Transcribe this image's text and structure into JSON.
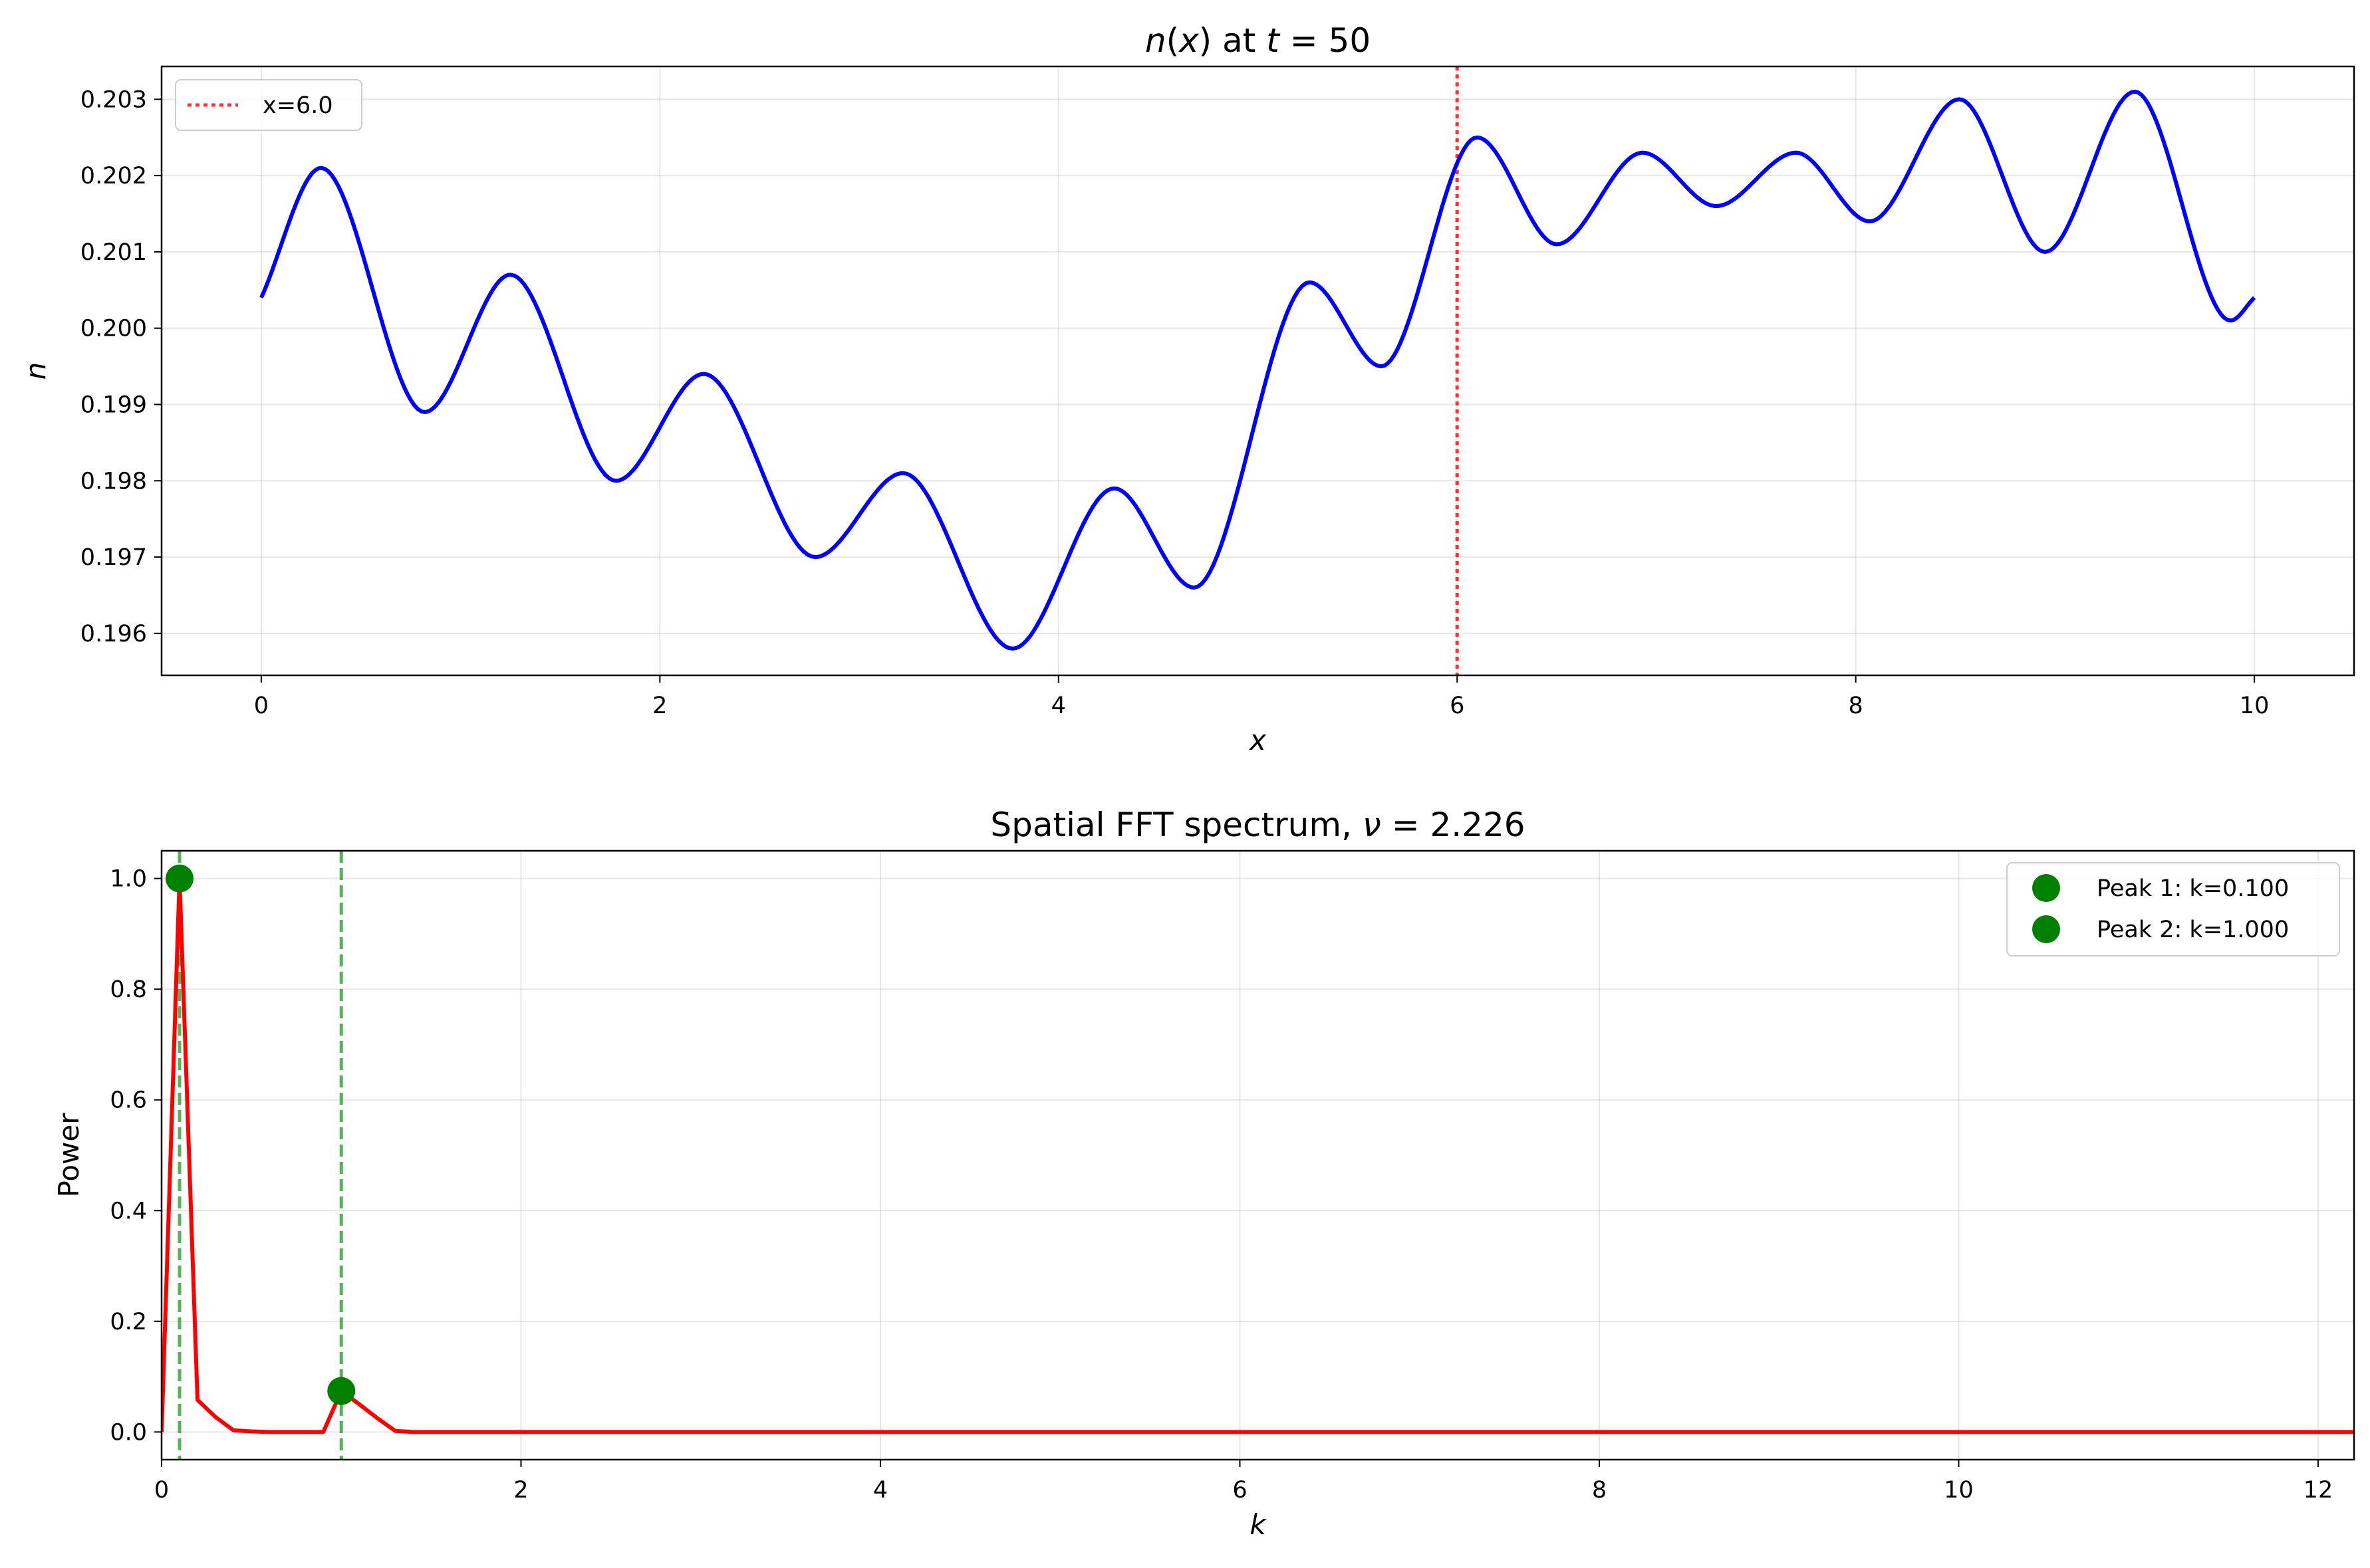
{
  "chart_data": [
    {
      "type": "line",
      "title_parts": [
        {
          "text": "n",
          "italic": true
        },
        {
          "text": "(",
          "italic": false
        },
        {
          "text": "x",
          "italic": true
        },
        {
          "text": ") at ",
          "italic": false
        },
        {
          "text": "t",
          "italic": true
        },
        {
          "text": " = 50",
          "italic": false
        }
      ],
      "xlabel": "x",
      "ylabel": "n",
      "xlim": [
        -0.5,
        10.5
      ],
      "ylim": [
        0.19545,
        0.20343
      ],
      "xticks": [
        0,
        2,
        4,
        6,
        8,
        10
      ],
      "yticks": [
        0.196,
        0.197,
        0.198,
        0.199,
        0.2,
        0.201,
        0.202,
        0.203
      ],
      "ytick_labels": [
        "0.196",
        "0.197",
        "0.198",
        "0.199",
        "0.200",
        "0.201",
        "0.202",
        "0.203"
      ],
      "grid": true,
      "legend_position": "top-left",
      "series": [
        {
          "color": "#0000ff",
          "x": [
            0.0,
            0.3,
            0.82,
            1.25,
            1.78,
            2.22,
            2.78,
            3.22,
            3.77,
            4.28,
            4.68,
            5.26,
            5.62,
            6.1,
            6.5,
            6.93,
            7.3,
            7.7,
            8.07,
            8.52,
            8.95,
            9.4,
            9.88,
            10.0
          ],
          "y": [
            0.2004,
            0.2021,
            0.1989,
            0.2007,
            0.198,
            0.1994,
            0.197,
            0.1981,
            0.1958,
            0.1979,
            0.1966,
            0.2006,
            0.1995,
            0.2025,
            0.2011,
            0.2023,
            0.2016,
            0.2023,
            0.2014,
            0.203,
            0.201,
            0.2031,
            0.2001,
            0.2004
          ]
        }
      ],
      "vlines": [
        {
          "x": 6.0,
          "color": "#ff0000",
          "style": "dotted",
          "label": "x=6.0"
        }
      ]
    },
    {
      "type": "line",
      "title_parts": [
        {
          "text": "Spatial FFT spectrum, ",
          "italic": false
        },
        {
          "text": "ν",
          "italic": true
        },
        {
          "text": " = 2.226",
          "italic": false
        }
      ],
      "xlabel": "k",
      "ylabel": "Power",
      "xlim": [
        0,
        12.2
      ],
      "ylim": [
        -0.05,
        1.05
      ],
      "xticks": [
        0,
        2,
        4,
        6,
        8,
        10,
        12
      ],
      "yticks": [
        0.0,
        0.2,
        0.4,
        0.6,
        0.8,
        1.0
      ],
      "ytick_labels": [
        "0.0",
        "0.2",
        "0.4",
        "0.6",
        "0.8",
        "1.0"
      ],
      "grid": true,
      "legend_position": "top-right",
      "series": [
        {
          "color": "#ff0000",
          "x": [
            0.0,
            0.1,
            0.2,
            0.3,
            0.4,
            0.5,
            0.6,
            0.7,
            0.8,
            0.9,
            1.0,
            1.1,
            1.2,
            1.3,
            1.4,
            12.2
          ],
          "y": [
            0.0,
            1.0,
            0.058,
            0.027,
            0.003,
            0.001,
            0.0,
            0.0,
            0.0,
            0.0,
            0.074,
            0.05,
            0.025,
            0.002,
            0.0,
            0.0
          ]
        }
      ],
      "vlines": [
        {
          "x": 0.1,
          "color": "#2ca02c",
          "style": "dashed"
        },
        {
          "x": 1.0,
          "color": "#2ca02c",
          "style": "dashed"
        }
      ],
      "peaks": [
        {
          "x": 0.1,
          "y": 1.0,
          "color": "#008000",
          "label": "Peak 1: k=0.100"
        },
        {
          "x": 1.0,
          "y": 0.074,
          "color": "#008000",
          "label": "Peak 2: k=1.000"
        }
      ]
    }
  ]
}
